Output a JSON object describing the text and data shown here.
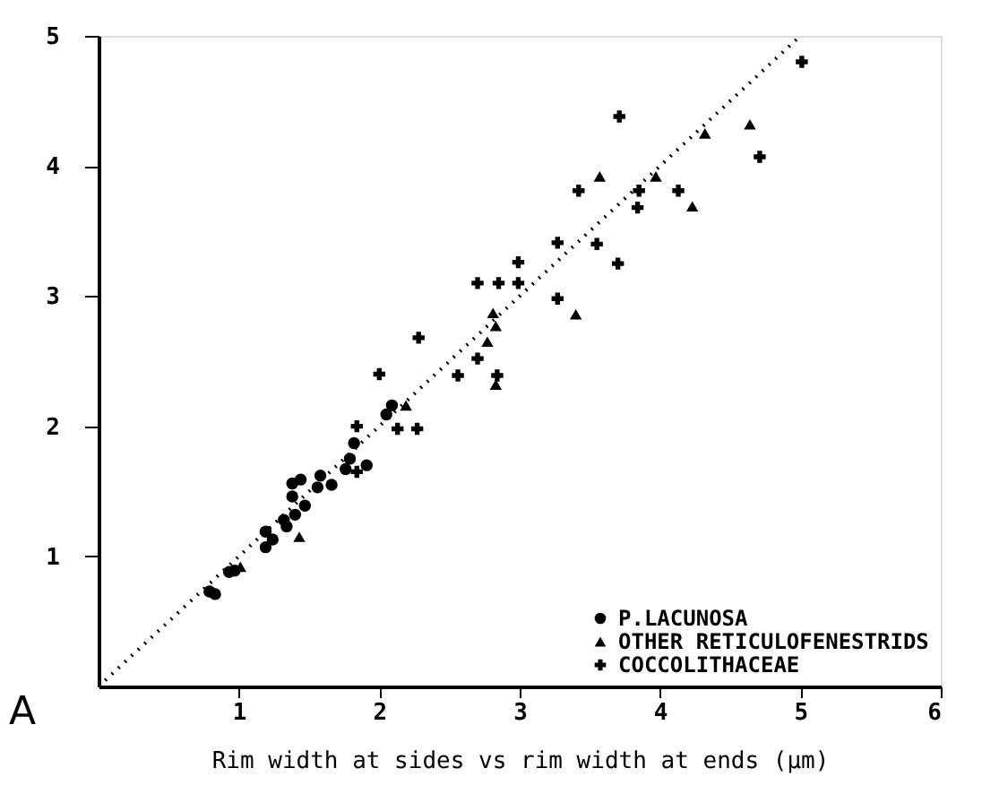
{
  "chart_data": {
    "type": "scatter",
    "xlabel": "Rim width at sides vs rim width at ends (µm)",
    "annotations": [
      "A"
    ],
    "xlim": [
      0,
      6
    ],
    "ylim": [
      0,
      5
    ],
    "xticks": [
      1,
      2,
      3,
      4,
      5,
      6
    ],
    "yticks": [
      1,
      2,
      3,
      4,
      5
    ],
    "grid": false,
    "legend": "bottom right",
    "series": [
      {
        "name": "P.LACUNOSA",
        "color": "#000000",
        "marker": "circle",
        "x": [
          0.79,
          0.83,
          0.93,
          0.97,
          1.19,
          1.24,
          1.19,
          1.34,
          1.32,
          1.4,
          1.47,
          1.38,
          1.38,
          1.44,
          1.56,
          1.66,
          1.58,
          1.76,
          1.79,
          1.91,
          1.82,
          2.05,
          2.09
        ],
        "values": [
          0.73,
          0.71,
          0.88,
          0.89,
          1.07,
          1.13,
          1.19,
          1.23,
          1.28,
          1.32,
          1.39,
          1.46,
          1.56,
          1.59,
          1.53,
          1.55,
          1.62,
          1.67,
          1.75,
          1.7,
          1.87,
          2.09,
          2.16
        ]
      },
      {
        "name": "OTHER RETICULOFENESTRIDS",
        "color": "#000000",
        "marker": "triangle",
        "x": [
          1.01,
          1.43,
          2.19,
          2.77,
          2.81,
          2.83,
          2.83,
          3.4,
          3.57,
          3.97,
          4.23,
          4.32,
          4.64
        ],
        "values": [
          0.92,
          1.15,
          2.16,
          2.65,
          2.87,
          2.77,
          2.32,
          2.86,
          3.92,
          3.92,
          3.69,
          4.25,
          4.32
        ]
      },
      {
        "name": "COCCOLITHACEAE",
        "color": "#000000",
        "marker": "cross",
        "x": [
          1.84,
          1.84,
          2.0,
          2.13,
          2.27,
          2.28,
          2.56,
          2.7,
          2.84,
          2.7,
          2.85,
          2.99,
          2.99,
          3.27,
          3.27,
          3.42,
          3.55,
          3.7,
          3.71,
          3.84,
          3.85,
          4.13,
          4.71,
          5.01
        ],
        "values": [
          1.65,
          2.0,
          2.4,
          1.98,
          1.98,
          2.68,
          2.39,
          2.52,
          2.39,
          3.1,
          3.1,
          3.1,
          3.26,
          2.98,
          3.41,
          3.81,
          3.4,
          3.25,
          4.38,
          3.68,
          3.81,
          3.81,
          4.07,
          4.8
        ]
      },
      {
        "type": "line",
        "color": "#000000",
        "marker": "none",
        "line_style": "dotted",
        "x": [
          0,
          5.0
        ],
        "values": [
          0,
          5.0
        ]
      }
    ]
  }
}
